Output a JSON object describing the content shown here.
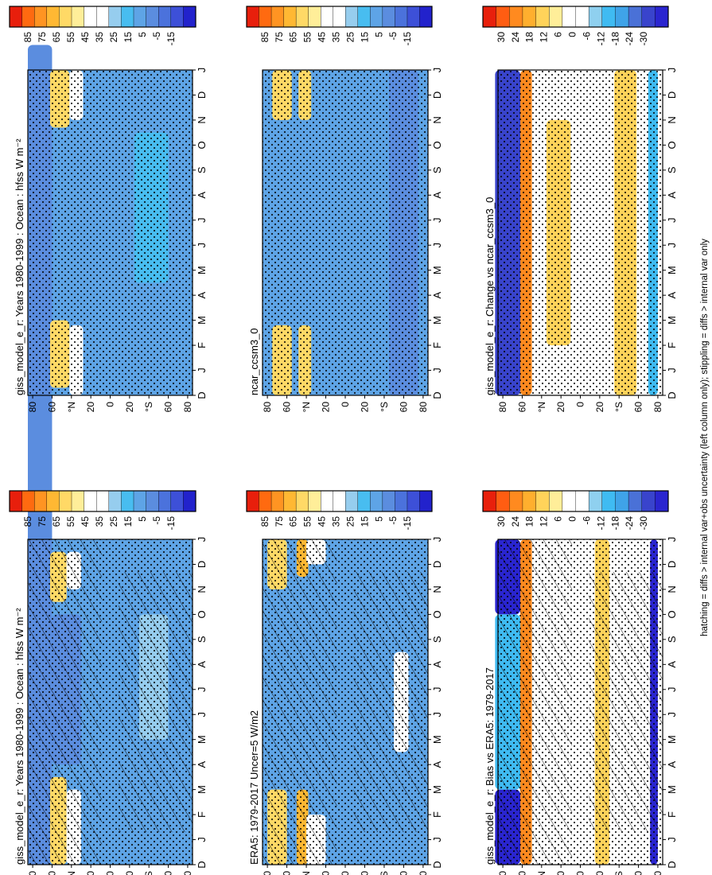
{
  "footnote": "hatching = diffs > internal var+obs uncertainty (left column only); stippling = diffs > internal var only",
  "colors": {
    "abs": [
      "#2222cc",
      "#3d50d8",
      "#4b72dc",
      "#5b8ddf",
      "#5ea4e6",
      "#48bdf0",
      "#96cdee",
      "#ffffff",
      "#ffffff",
      "#ffee99",
      "#ffd966",
      "#ffb833",
      "#ff9422",
      "#ff6a10",
      "#e81f0c"
    ],
    "diff": [
      "#2a25d0",
      "#3944cc",
      "#4a71d7",
      "#3fa3e8",
      "#3fbbf2",
      "#8fd0ef",
      "#ffffff",
      "#ffffff",
      "#ffee99",
      "#ffd35a",
      "#ffaf2e",
      "#ff8a1f",
      "#ff5d12",
      "#e8200c"
    ]
  },
  "chart_data": [
    {
      "type": "heatmap",
      "title": "giss_model_e_r: Years 1980-1999 : Ocean : hfss W m⁻²",
      "x_labels": [
        "D",
        "J",
        "F",
        "M",
        "A",
        "M",
        "J",
        "J",
        "A",
        "S",
        "O",
        "N",
        "D",
        "J"
      ],
      "y_labels": [
        "80",
        "60",
        "°N",
        "20",
        "0",
        "20",
        "°S",
        "60",
        "80"
      ],
      "colorbar_labels": [
        "85",
        "75",
        "65",
        "55",
        "45",
        "35",
        "25",
        "15",
        "5",
        "-5",
        "-15"
      ],
      "colorbar": "abs",
      "hatching": true,
      "stippling": true,
      "bands": [
        {
          "lat": [
            60,
            85
          ],
          "months": [
            [
              0,
              24
            ]
          ],
          "value": 5
        },
        {
          "lat": [
            45,
            62
          ],
          "months": [
            [
              0,
              3.5
            ],
            [
              10.5,
              12.5
            ]
          ],
          "value": 55
        },
        {
          "lat": [
            30,
            45
          ],
          "months": [
            [
              0,
              3
            ],
            [
              11,
              12.5
            ]
          ],
          "value": 40
        },
        {
          "lat": [
            30,
            60
          ],
          "months": [
            [
              4,
              10
            ]
          ],
          "value": 10
        },
        {
          "lat": [
            -60,
            -30
          ],
          "months": [
            [
              5,
              10
            ]
          ],
          "value": 25
        }
      ]
    },
    {
      "type": "heatmap",
      "title": "giss_model_e_r: Years 1980-1999 : Ocean : hfss W m⁻²",
      "x_labels": [
        "D",
        "J",
        "F",
        "M",
        "A",
        "M",
        "J",
        "J",
        "A",
        "S",
        "O",
        "N",
        "D",
        "J"
      ],
      "y_labels": [
        "80",
        "60",
        "°N",
        "20",
        "0",
        "20",
        "°S",
        "60",
        "80"
      ],
      "colorbar_labels": [
        "85",
        "75",
        "65",
        "55",
        "45",
        "35",
        "25",
        "15",
        "5",
        "-5",
        "-15"
      ],
      "colorbar": "abs",
      "hatching": false,
      "stippling": true,
      "bands": [
        {
          "lat": [
            60,
            85
          ],
          "months": [
            [
              0,
              14
            ]
          ],
          "value": 5
        },
        {
          "lat": [
            42,
            62
          ],
          "months": [
            [
              0.3,
              3
            ],
            [
              10.7,
              13
            ]
          ],
          "value": 55
        },
        {
          "lat": [
            28,
            42
          ],
          "months": [
            [
              0,
              2.8
            ],
            [
              11,
              13
            ]
          ],
          "value": 40
        },
        {
          "lat": [
            -60,
            -25
          ],
          "months": [
            [
              4.5,
              10.5
            ]
          ],
          "value": 20
        }
      ]
    },
    {
      "type": "heatmap",
      "title": "ERA5: 1979-2017 Uncer=5 W/m2",
      "x_labels": [
        "D",
        "J",
        "F",
        "M",
        "A",
        "M",
        "J",
        "J",
        "A",
        "S",
        "O",
        "N",
        "D",
        "J"
      ],
      "y_labels": [
        "80",
        "60",
        "°N",
        "20",
        "0",
        "20",
        "°S",
        "60",
        "80"
      ],
      "colorbar_labels": [
        "85",
        "75",
        "65",
        "55",
        "45",
        "35",
        "25",
        "15",
        "5",
        "-5",
        "-15"
      ],
      "colorbar": "abs",
      "hatching": true,
      "stippling": true,
      "bands": [
        {
          "lat": [
            60,
            80
          ],
          "months": [
            [
              0,
              3
            ],
            [
              11,
              13
            ]
          ],
          "value": 55
        },
        {
          "lat": [
            38,
            50
          ],
          "months": [
            [
              0,
              3
            ],
            [
              11.5,
              13
            ]
          ],
          "value": 60
        },
        {
          "lat": [
            20,
            40
          ],
          "months": [
            [
              0,
              2
            ],
            [
              12,
              13
            ]
          ],
          "value": 40
        },
        {
          "lat": [
            -65,
            -50
          ],
          "months": [
            [
              4.5,
              8.5
            ]
          ],
          "value": 35
        }
      ]
    },
    {
      "type": "heatmap",
      "title": "ncar_ccsm3_0",
      "x_labels": [
        "D",
        "J",
        "F",
        "M",
        "A",
        "M",
        "J",
        "J",
        "A",
        "S",
        "O",
        "N",
        "D",
        "J"
      ],
      "y_labels": [
        "80",
        "60",
        "°N",
        "20",
        "0",
        "20",
        "°S",
        "60",
        "80"
      ],
      "colorbar_labels": [
        "85",
        "75",
        "65",
        "55",
        "45",
        "35",
        "25",
        "15",
        "5",
        "-5",
        "-15"
      ],
      "colorbar": "abs",
      "hatching": false,
      "stippling": true,
      "bands": [
        {
          "lat": [
            55,
            75
          ],
          "months": [
            [
              0,
              2.8
            ],
            [
              11,
              13
            ]
          ],
          "value": 55
        },
        {
          "lat": [
            35,
            48
          ],
          "months": [
            [
              0,
              2.8
            ],
            [
              11,
              13
            ]
          ],
          "value": 55
        },
        {
          "lat": [
            -75,
            -45
          ],
          "months": [
            [
              0,
              13
            ]
          ],
          "value": 5
        }
      ]
    },
    {
      "type": "heatmap",
      "title": "giss_model_e_r: Bias vs ERA5: 1979-2017",
      "x_labels": [
        "D",
        "J",
        "F",
        "M",
        "A",
        "M",
        "J",
        "J",
        "A",
        "S",
        "O",
        "N",
        "D",
        "J"
      ],
      "y_labels": [
        "80",
        "60",
        "°N",
        "20",
        "0",
        "20",
        "°S",
        "60",
        "80"
      ],
      "colorbar_labels": [
        "30",
        "24",
        "18",
        "12",
        "6",
        "0",
        "-6",
        "-12",
        "-18",
        "-24",
        "-30"
      ],
      "colorbar": "diff",
      "hatching": true,
      "stippling": true,
      "bands": [
        {
          "lat": [
            62,
            88
          ],
          "months": [
            [
              0,
              3
            ],
            [
              10,
              13
            ]
          ],
          "value": -30
        },
        {
          "lat": [
            62,
            88
          ],
          "months": [
            [
              3,
              10
            ]
          ],
          "value": -10
        },
        {
          "lat": [
            50,
            62
          ],
          "months": [
            [
              0,
              13
            ]
          ],
          "value": 18
        },
        {
          "lat": [
            20,
            45
          ],
          "months": [
            [
              4,
              9
            ]
          ],
          "value": 3
        },
        {
          "lat": [
            -30,
            -15
          ],
          "months": [
            [
              0,
              13
            ]
          ],
          "value": 12
        },
        {
          "lat": [
            -80,
            -72
          ],
          "months": [
            [
              0,
              13
            ]
          ],
          "value": -30
        }
      ]
    },
    {
      "type": "heatmap",
      "title": "giss_model_e_r: Change vs ncar_ccsm3_0",
      "x_labels": [
        "D",
        "J",
        "F",
        "M",
        "A",
        "M",
        "J",
        "J",
        "A",
        "S",
        "O",
        "N",
        "D",
        "J"
      ],
      "y_labels": [
        "80",
        "60",
        "°N",
        "20",
        "0",
        "20",
        "°S",
        "60",
        "80"
      ],
      "colorbar_labels": [
        "30",
        "24",
        "18",
        "12",
        "6",
        "0",
        "-6",
        "-12",
        "-18",
        "-24",
        "-30"
      ],
      "colorbar": "diff",
      "hatching": false,
      "stippling": true,
      "bands": [
        {
          "lat": [
            62,
            88
          ],
          "months": [
            [
              0,
              13
            ]
          ],
          "value": -24
        },
        {
          "lat": [
            50,
            62
          ],
          "months": [
            [
              0,
              13
            ]
          ],
          "value": 18
        },
        {
          "lat": [
            10,
            35
          ],
          "months": [
            [
              2,
              11
            ]
          ],
          "value": 10
        },
        {
          "lat": [
            -58,
            -35
          ],
          "months": [
            [
              0,
              13
            ]
          ],
          "value": 12
        },
        {
          "lat": [
            -80,
            -70
          ],
          "months": [
            [
              0,
              13
            ]
          ],
          "value": -12
        }
      ]
    }
  ]
}
